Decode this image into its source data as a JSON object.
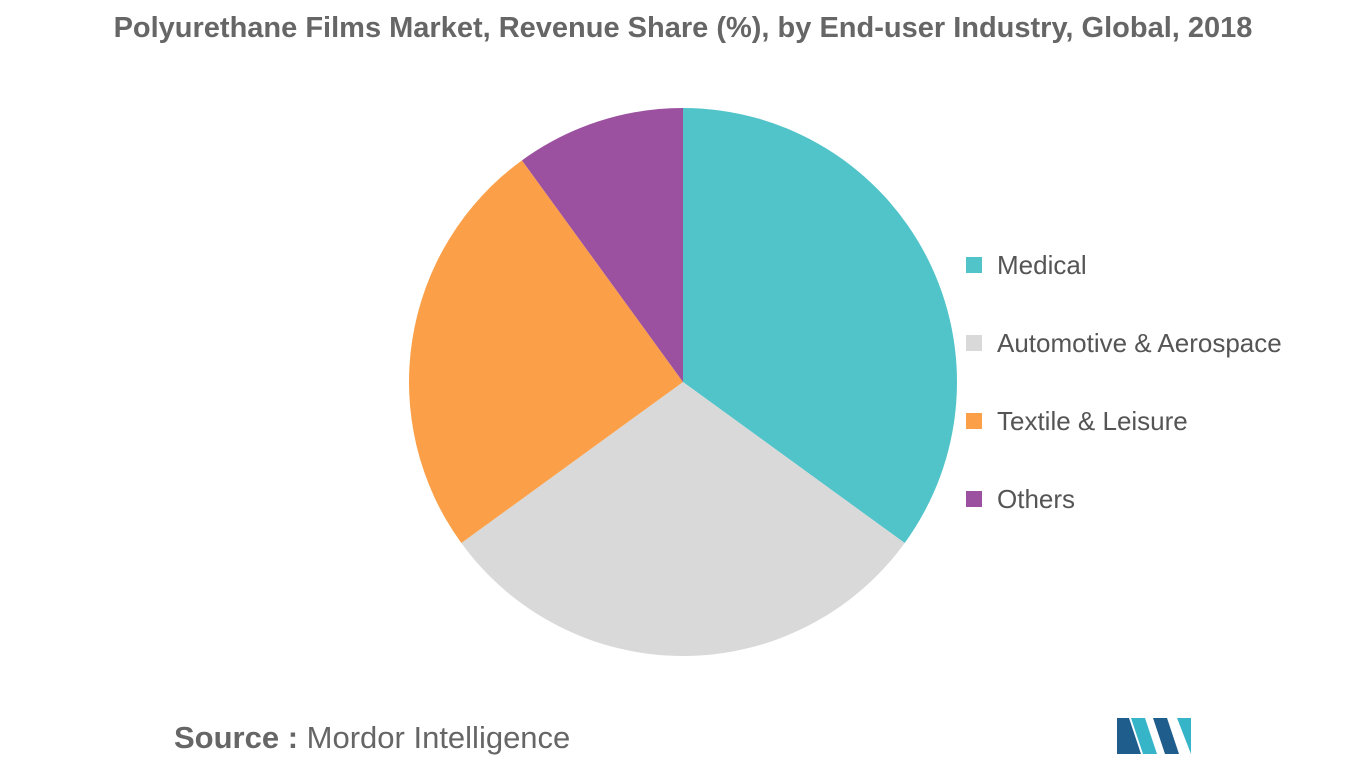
{
  "title": "Polyurethane Films Market, Revenue Share (%), by End-user Industry, Global, 2018",
  "chart_data": {
    "type": "pie",
    "title": "Polyurethane Films Market, Revenue Share (%), by End-user Industry, Global, 2018",
    "slices": [
      {
        "name": "Medical",
        "value": 35,
        "color": "#51C4CA"
      },
      {
        "name": "Automotive & Aerospace",
        "value": 30,
        "color": "#D9D9D9"
      },
      {
        "name": "Textile & Leisure",
        "value": 25,
        "color": "#FBA048"
      },
      {
        "name": "Others",
        "value": 10,
        "color": "#9B519F"
      }
    ],
    "legend_position": "right",
    "start": "top, clockwise"
  },
  "legend": [
    {
      "label": "Medical",
      "color": "#51C4CA"
    },
    {
      "label": "Automotive & Aerospace",
      "color": "#D9D9D9"
    },
    {
      "label": "Textile & Leisure",
      "color": "#FBA048"
    },
    {
      "label": "Others",
      "color": "#9B519F"
    }
  ],
  "source": {
    "label": "Source :",
    "value": "Mordor Intelligence"
  },
  "logo": {
    "icon": "mordor-intelligence-logo-icon",
    "colors": [
      "#1F5D8C",
      "#36B5C9"
    ]
  }
}
